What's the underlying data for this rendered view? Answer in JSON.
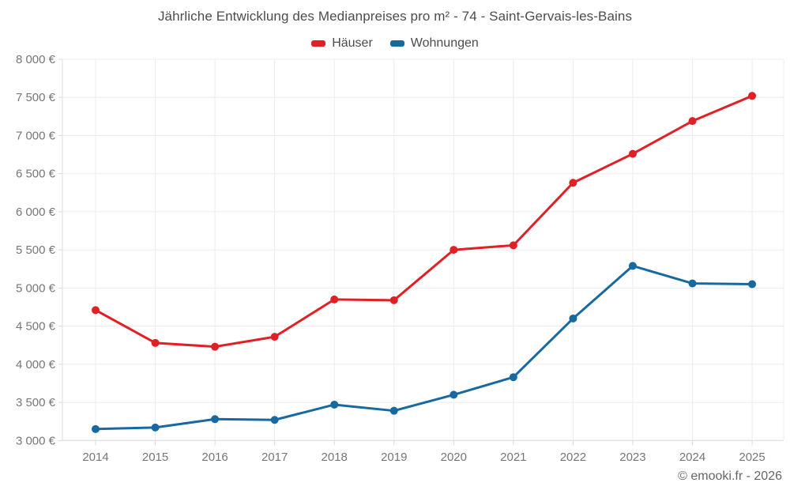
{
  "page": {
    "footer": "© emooki.fr - 2026"
  },
  "chart_data": {
    "type": "line",
    "title": "Jährliche Entwicklung des Medianpreises pro m² - 74 - Saint-Gervais-les-Bains",
    "xlabel": "",
    "ylabel": "",
    "categories": [
      "2014",
      "2015",
      "2016",
      "2017",
      "2018",
      "2019",
      "2020",
      "2021",
      "2022",
      "2023",
      "2024",
      "2025"
    ],
    "series": [
      {
        "name": "Häuser",
        "color": "#e12026",
        "values": [
          4710,
          4280,
          4230,
          4360,
          4850,
          4840,
          5500,
          5560,
          6380,
          6760,
          7190,
          7520
        ]
      },
      {
        "name": "Wohnungen",
        "color": "#1769a0",
        "values": [
          3150,
          3170,
          3280,
          3270,
          3470,
          3390,
          3600,
          3830,
          4600,
          5290,
          5060,
          5050
        ]
      }
    ],
    "ylim": [
      3000,
      8000
    ],
    "ytick_step": 500,
    "yticks": [
      3000,
      3500,
      4000,
      4500,
      5000,
      5500,
      6000,
      6500,
      7000,
      7500,
      8000
    ],
    "ytick_labels": [
      "3 000 €",
      "3 500 €",
      "4 000 €",
      "4 500 €",
      "5 000 €",
      "5 500 €",
      "6 000 €",
      "6 500 €",
      "7 000 €",
      "7 500 €",
      "8 000 €"
    ],
    "unit": "€",
    "grid": true,
    "legend_position": "top",
    "colors": {
      "gridline": "#ececec",
      "axis_line": "#dcdcdc",
      "tick": "#d9d9d9",
      "tick_label": "#767676",
      "title_text": "#4c4c4c",
      "footer_text": "#666666",
      "background": "#ffffff"
    }
  }
}
